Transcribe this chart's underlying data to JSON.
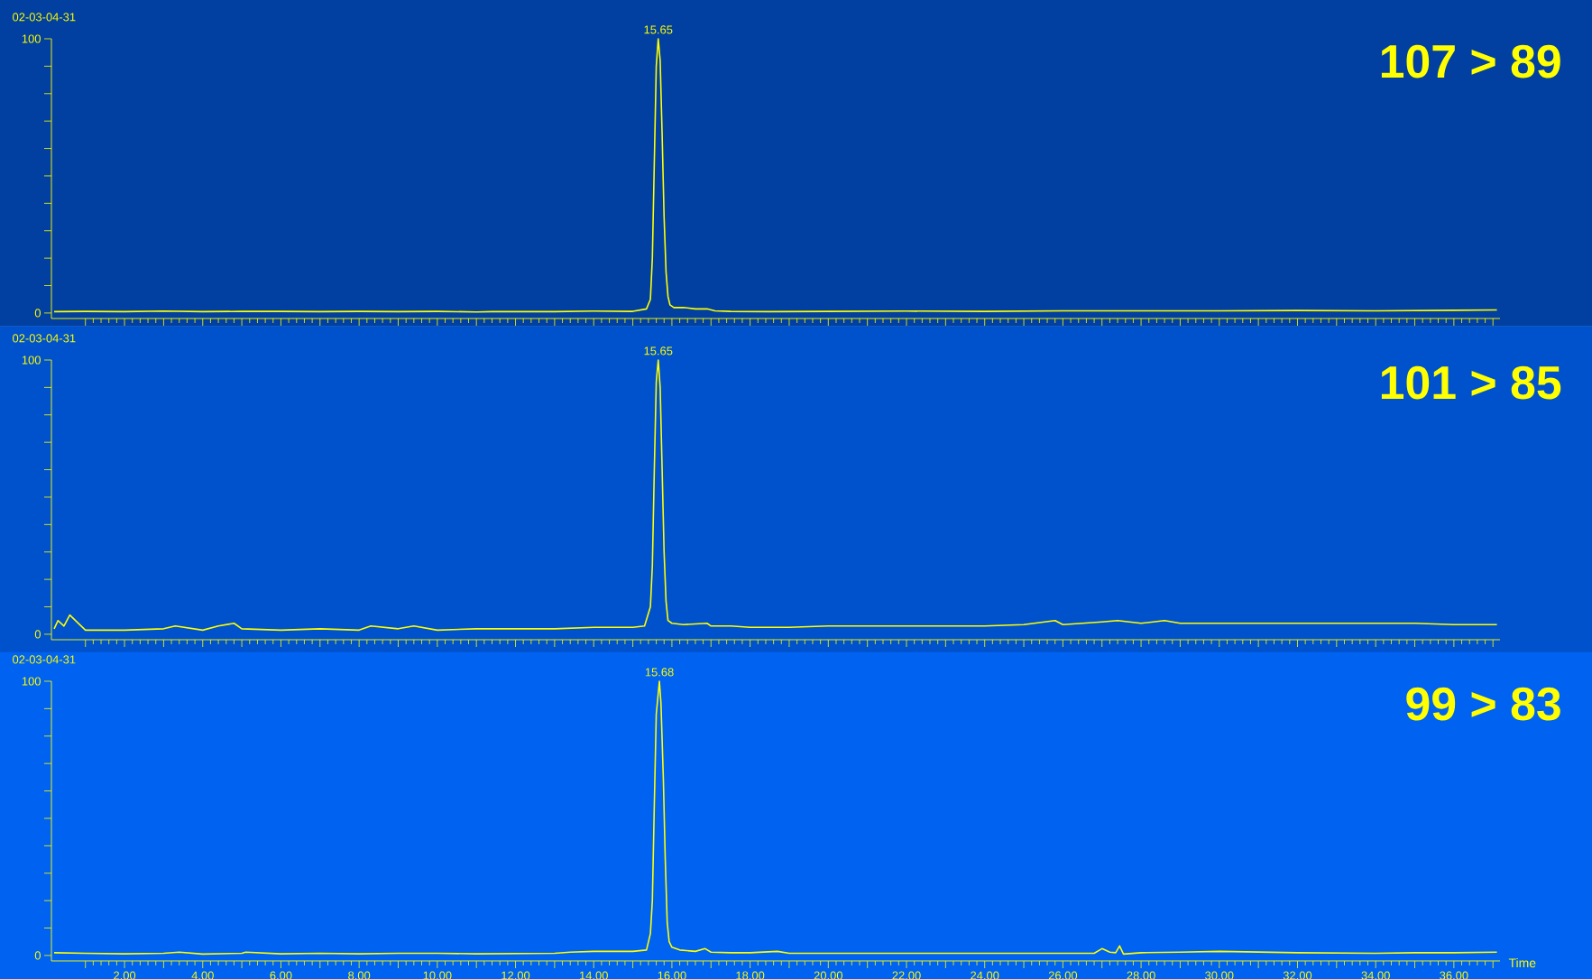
{
  "chart_data": [
    {
      "type": "line",
      "title": "107 > 89",
      "subtitle": "02-03-04-31",
      "tick_labels": "y",
      "xlim": [
        0.13,
        37.18
      ],
      "ylim": [
        -2,
        100
      ],
      "xticks": [
        1,
        2,
        3,
        4,
        5,
        6,
        7,
        8,
        9,
        10,
        11,
        12,
        13,
        14,
        15,
        16,
        17,
        18,
        19,
        20,
        21,
        22,
        23,
        24,
        25,
        26,
        27,
        28,
        29,
        30,
        31,
        32,
        33,
        34,
        35,
        36,
        37
      ],
      "yticks": [
        0,
        {
          "value": 10,
          "label": null
        },
        {
          "value": 20,
          "label": null
        },
        {
          "value": 30,
          "label": null
        },
        {
          "value": 40,
          "label": null
        },
        {
          "value": 50,
          "label": null
        },
        {
          "value": 60,
          "label": null
        },
        {
          "value": 70,
          "label": null
        },
        {
          "value": 80,
          "label": null
        },
        {
          "value": 90,
          "label": null
        },
        100
      ],
      "annotations": [
        "15.65"
      ],
      "series": [
        {
          "color": "#ffff00",
          "x": [
            0.2,
            1.0,
            2.0,
            3.0,
            4.0,
            5.0,
            6.0,
            7.0,
            8.0,
            9.0,
            10.0,
            11.0,
            11.4,
            12.0,
            13.0,
            14.0,
            15.0,
            15.35,
            15.45,
            15.5,
            15.55,
            15.6,
            15.65,
            15.7,
            15.75,
            15.8,
            15.85,
            15.9,
            15.95,
            16.05,
            16.3,
            16.6,
            16.9,
            17.1,
            17.5,
            18.5,
            20.0,
            22.0,
            24.0,
            26.0,
            28.0,
            30.0,
            32.0,
            34.0,
            36.0,
            37.1
          ],
          "values": [
            0.5,
            0.6,
            0.5,
            0.7,
            0.5,
            0.6,
            0.6,
            0.5,
            0.6,
            0.5,
            0.6,
            0.4,
            0.5,
            0.5,
            0.5,
            0.7,
            0.6,
            1.5,
            5,
            20,
            55,
            90,
            100,
            92,
            65,
            35,
            15,
            6,
            3,
            2,
            2,
            1.5,
            1.5,
            0.8,
            0.6,
            0.5,
            0.6,
            0.7,
            0.6,
            0.8,
            0.8,
            0.8,
            0.9,
            0.8,
            1.0,
            1.1
          ]
        }
      ]
    },
    {
      "type": "line",
      "title": "101 > 85",
      "subtitle": "02-03-04-31",
      "tick_labels": "y",
      "xlim": [
        0.13,
        37.18
      ],
      "ylim": [
        -2,
        100
      ],
      "xticks": [
        1,
        2,
        3,
        4,
        5,
        6,
        7,
        8,
        9,
        10,
        11,
        12,
        13,
        14,
        15,
        16,
        17,
        18,
        19,
        20,
        21,
        22,
        23,
        24,
        25,
        26,
        27,
        28,
        29,
        30,
        31,
        32,
        33,
        34,
        35,
        36,
        37
      ],
      "yticks": [
        0,
        {
          "value": 10,
          "label": null
        },
        {
          "value": 20,
          "label": null
        },
        {
          "value": 30,
          "label": null
        },
        {
          "value": 40,
          "label": null
        },
        {
          "value": 50,
          "label": null
        },
        {
          "value": 60,
          "label": null
        },
        {
          "value": 70,
          "label": null
        },
        {
          "value": 80,
          "label": null
        },
        {
          "value": 90,
          "label": null
        },
        100
      ],
      "annotations": [
        "15.65"
      ],
      "series": [
        {
          "color": "#ffff00",
          "x": [
            0.2,
            0.3,
            0.45,
            0.6,
            1.0,
            2.0,
            3.0,
            3.3,
            4.0,
            4.4,
            4.8,
            5.0,
            6.0,
            7.0,
            8.0,
            8.3,
            9.0,
            9.4,
            10.0,
            11.0,
            12.0,
            13.0,
            14.0,
            15.0,
            15.3,
            15.45,
            15.5,
            15.55,
            15.6,
            15.65,
            15.7,
            15.75,
            15.8,
            15.85,
            15.9,
            16.0,
            16.3,
            16.9,
            17.0,
            17.5,
            18.0,
            19.0,
            20.0,
            21.0,
            22.0,
            23.0,
            24.0,
            25.0,
            25.8,
            26.0,
            27.0,
            27.4,
            28.0,
            28.6,
            29.0,
            30.0,
            31.0,
            32.0,
            33.0,
            34.0,
            35.0,
            36.0,
            37.1
          ],
          "values": [
            2,
            5,
            3,
            7,
            1.5,
            1.5,
            2,
            3,
            1.5,
            3,
            4,
            2,
            1.5,
            2,
            1.5,
            3,
            2,
            3,
            1.5,
            2,
            2,
            2,
            2.5,
            2.5,
            3,
            10,
            25,
            60,
            92,
            100,
            90,
            60,
            30,
            12,
            5,
            4,
            3.5,
            4,
            3,
            3,
            2.5,
            2.5,
            3,
            3,
            3,
            3,
            3,
            3.5,
            5,
            3.5,
            4.5,
            5,
            4,
            5,
            4,
            4,
            4,
            4,
            4,
            4,
            4,
            3.5,
            3.5
          ]
        }
      ]
    },
    {
      "type": "line",
      "title": "99 > 83",
      "subtitle": "02-03-04-31",
      "xlabel": "Time",
      "xlim": [
        0.13,
        37.18
      ],
      "ylim": [
        -2,
        100
      ],
      "xticks": [
        {
          "value": 1,
          "label": null
        },
        {
          "value": 2,
          "label": "2.00"
        },
        {
          "value": 3,
          "label": null
        },
        {
          "value": 4,
          "label": "4.00"
        },
        {
          "value": 5,
          "label": null
        },
        {
          "value": 6,
          "label": "6.00"
        },
        {
          "value": 7,
          "label": null
        },
        {
          "value": 8,
          "label": "8.00"
        },
        {
          "value": 9,
          "label": null
        },
        {
          "value": 10,
          "label": "10.00"
        },
        {
          "value": 11,
          "label": null
        },
        {
          "value": 12,
          "label": "12.00"
        },
        {
          "value": 13,
          "label": null
        },
        {
          "value": 14,
          "label": "14.00"
        },
        {
          "value": 15,
          "label": null
        },
        {
          "value": 16,
          "label": "16.00"
        },
        {
          "value": 17,
          "label": null
        },
        {
          "value": 18,
          "label": "18.00"
        },
        {
          "value": 19,
          "label": null
        },
        {
          "value": 20,
          "label": "20.00"
        },
        {
          "value": 21,
          "label": null
        },
        {
          "value": 22,
          "label": "22.00"
        },
        {
          "value": 23,
          "label": null
        },
        {
          "value": 24,
          "label": "24.00"
        },
        {
          "value": 25,
          "label": null
        },
        {
          "value": 26,
          "label": "26.00"
        },
        {
          "value": 27,
          "label": null
        },
        {
          "value": 28,
          "label": "28.00"
        },
        {
          "value": 29,
          "label": null
        },
        {
          "value": 30,
          "label": "30.00"
        },
        {
          "value": 31,
          "label": null
        },
        {
          "value": 32,
          "label": "32.00"
        },
        {
          "value": 33,
          "label": null
        },
        {
          "value": 34,
          "label": "34.00"
        },
        {
          "value": 35,
          "label": null
        },
        {
          "value": 36,
          "label": "36.00"
        },
        {
          "value": 37,
          "label": null
        }
      ],
      "yticks": [
        0,
        {
          "value": 10,
          "label": null
        },
        {
          "value": 20,
          "label": null
        },
        {
          "value": 30,
          "label": null
        },
        {
          "value": 40,
          "label": null
        },
        {
          "value": 50,
          "label": null
        },
        {
          "value": 60,
          "label": null
        },
        {
          "value": 70,
          "label": null
        },
        {
          "value": 80,
          "label": null
        },
        {
          "value": 90,
          "label": null
        },
        100
      ],
      "annotations": [
        "15.68"
      ],
      "series": [
        {
          "color": "#ffff00",
          "x": [
            0.2,
            1.0,
            2.0,
            3.0,
            3.4,
            4.0,
            5.0,
            5.1,
            6.0,
            7.0,
            8.0,
            9.0,
            10.0,
            11.0,
            12.0,
            13.0,
            13.4,
            14.0,
            15.0,
            15.35,
            15.45,
            15.5,
            15.55,
            15.6,
            15.68,
            15.72,
            15.78,
            15.83,
            15.88,
            15.93,
            16.0,
            16.2,
            16.6,
            16.85,
            17.0,
            17.5,
            18.0,
            18.7,
            19.0,
            20.0,
            22.0,
            24.0,
            26.0,
            26.8,
            27.0,
            27.2,
            27.35,
            27.45,
            27.55,
            28.0,
            29.0,
            30.0,
            32.0,
            34.0,
            35.0,
            36.0,
            37.1
          ],
          "values": [
            1,
            0.8,
            0.6,
            0.8,
            1.2,
            0.5,
            0.8,
            1.2,
            0.6,
            0.8,
            0.6,
            0.8,
            0.8,
            0.6,
            0.7,
            0.8,
            1.2,
            1.5,
            1.5,
            2,
            8,
            20,
            55,
            88,
            100,
            92,
            65,
            35,
            12,
            5,
            3,
            2,
            1.5,
            2.5,
            1.2,
            1,
            1,
            1.5,
            0.8,
            0.8,
            0.8,
            0.8,
            0.8,
            0.8,
            2.5,
            1.2,
            1,
            3.5,
            0.5,
            1,
            1.2,
            1.5,
            1,
            0.8,
            1,
            1,
            1.2
          ]
        }
      ]
    }
  ]
}
